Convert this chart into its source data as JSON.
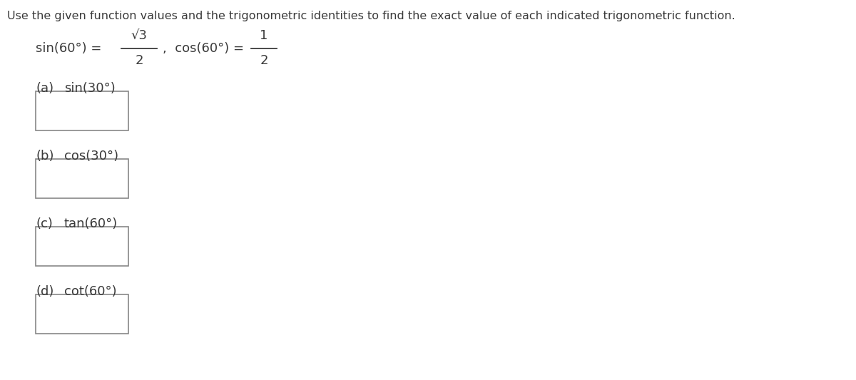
{
  "background_color": "#ffffff",
  "text_color": "#3a3a3a",
  "title_text": "Use the given function values and the trigonometric identities to find the exact value of each indicated trigonometric function.",
  "title_fontsize": 11.5,
  "given_fontsize": 13,
  "label_fontsize": 13,
  "parts": [
    {
      "label": "(a)",
      "func": "sin(30°)"
    },
    {
      "label": "(b)",
      "func": "cos(30°)"
    },
    {
      "label": "(c)",
      "func": "tan(60°)"
    },
    {
      "label": "(d)",
      "func": "cot(60°)"
    }
  ]
}
